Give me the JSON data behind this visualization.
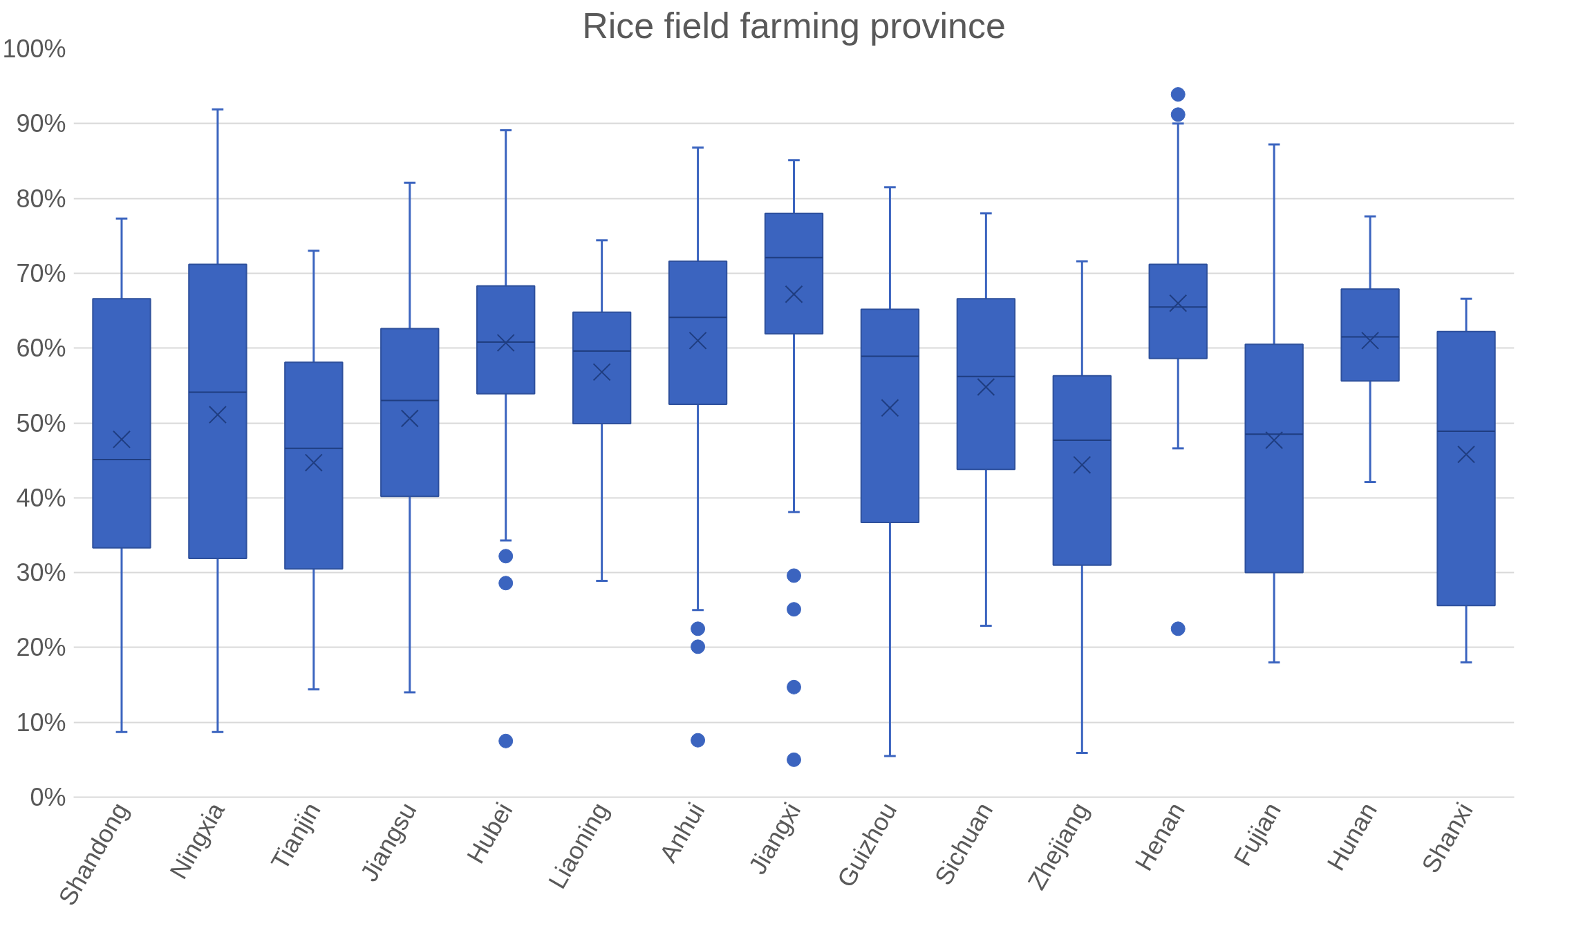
{
  "chart_data": {
    "type": "box",
    "title": "Rice field farming province",
    "categories": [
      "Shandong",
      "Ningxia",
      "Tianjin",
      "Jiangsu",
      "Hubei",
      "Liaoning",
      "Anhui",
      "Jiangxi",
      "Guizhou",
      "Sichuan",
      "Zhejiang",
      "Henan",
      "Fujian",
      "Hunan",
      "Shanxi"
    ],
    "color": "#3b64bf",
    "boxes": [
      {
        "low": 8.7,
        "q1": 33.3,
        "median": 45.1,
        "q3": 66.6,
        "high": 77.3,
        "mean": 47.8
      },
      {
        "low": 8.7,
        "q1": 31.9,
        "median": 54.1,
        "q3": 71.2,
        "high": 91.9,
        "mean": 51.1
      },
      {
        "low": 14.4,
        "q1": 30.5,
        "median": 46.6,
        "q3": 58.1,
        "high": 73.0,
        "mean": 44.7
      },
      {
        "low": 14.0,
        "q1": 40.2,
        "median": 53.0,
        "q3": 62.6,
        "high": 82.1,
        "mean": 50.6
      },
      {
        "low": 34.3,
        "q1": 53.9,
        "median": 60.8,
        "q3": 68.3,
        "high": 89.1,
        "mean": 60.7,
        "outliers": [
          32.2,
          28.6,
          7.5
        ]
      },
      {
        "low": 28.9,
        "q1": 49.9,
        "median": 59.6,
        "q3": 64.8,
        "high": 74.4,
        "mean": 56.8
      },
      {
        "low": 25.0,
        "q1": 52.5,
        "median": 64.1,
        "q3": 71.6,
        "high": 86.8,
        "mean": 61.0,
        "outliers": [
          22.5,
          20.1,
          7.6
        ]
      },
      {
        "low": 38.1,
        "q1": 61.9,
        "median": 72.1,
        "q3": 78.0,
        "high": 85.1,
        "mean": 67.2,
        "outliers": [
          29.6,
          25.1,
          14.7,
          5.0
        ]
      },
      {
        "low": 5.5,
        "q1": 36.7,
        "median": 58.9,
        "q3": 65.2,
        "high": 81.5,
        "mean": 52.0
      },
      {
        "low": 22.9,
        "q1": 43.8,
        "median": 56.2,
        "q3": 66.6,
        "high": 78.0,
        "mean": 54.8
      },
      {
        "low": 5.9,
        "q1": 31.0,
        "median": 47.7,
        "q3": 56.3,
        "high": 71.6,
        "mean": 44.4
      },
      {
        "low": 46.6,
        "q1": 58.6,
        "median": 65.5,
        "q3": 71.2,
        "high": 90.0,
        "mean": 66.0,
        "outliers": [
          93.9,
          91.2,
          22.5
        ]
      },
      {
        "low": 18.0,
        "q1": 30.0,
        "median": 48.5,
        "q3": 60.5,
        "high": 87.2,
        "mean": 47.7
      },
      {
        "low": 42.1,
        "q1": 55.6,
        "median": 61.5,
        "q3": 67.9,
        "high": 77.6,
        "mean": 61.0
      },
      {
        "low": 18.0,
        "q1": 25.6,
        "median": 48.9,
        "q3": 62.2,
        "high": 66.6,
        "mean": 45.8
      }
    ],
    "ylim": [
      0,
      100
    ],
    "yticks": [
      {
        "value": 0,
        "label": "0%"
      },
      {
        "value": 10,
        "label": "10%"
      },
      {
        "value": 20,
        "label": "20%"
      },
      {
        "value": 30,
        "label": "30%"
      },
      {
        "value": 40,
        "label": "40%"
      },
      {
        "value": 50,
        "label": "50%"
      },
      {
        "value": 60,
        "label": "60%"
      },
      {
        "value": 70,
        "label": "70%"
      },
      {
        "value": 80,
        "label": "80%"
      },
      {
        "value": 90,
        "label": "90%"
      },
      {
        "value": 100,
        "label": "100%"
      }
    ],
    "grid": "y"
  }
}
